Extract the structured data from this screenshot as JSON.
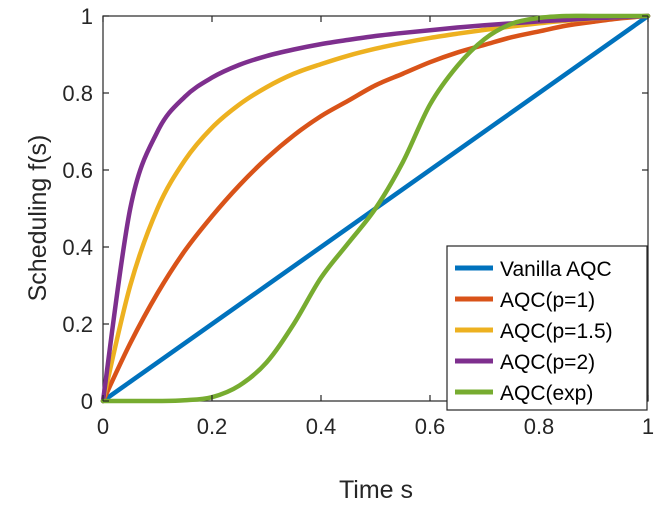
{
  "chart_data": {
    "type": "line",
    "title": "",
    "xlabel": "Time s",
    "ylabel": "Scheduling f(s)",
    "xlim": [
      0,
      1
    ],
    "ylim": [
      0,
      1
    ],
    "xticks": [
      "0",
      "0.2",
      "0.4",
      "0.6",
      "0.8",
      "1"
    ],
    "yticks": [
      "0",
      "0.2",
      "0.4",
      "0.6",
      "0.8",
      "1"
    ],
    "grid": false,
    "legend_position": "bottom-right",
    "x": [
      0,
      0.05,
      0.1,
      0.15,
      0.2,
      0.25,
      0.3,
      0.35,
      0.4,
      0.45,
      0.5,
      0.55,
      0.6,
      0.65,
      0.7,
      0.75,
      0.8,
      0.85,
      0.9,
      0.95,
      1
    ],
    "series": [
      {
        "name": "Vanilla AQC",
        "color": "#0072BD",
        "values": [
          0,
          0.05,
          0.1,
          0.15,
          0.2,
          0.25,
          0.3,
          0.35,
          0.4,
          0.45,
          0.5,
          0.55,
          0.6,
          0.65,
          0.7,
          0.75,
          0.8,
          0.85,
          0.9,
          0.95,
          1
        ]
      },
      {
        "name": "AQC(p=1)",
        "color": "#D95319",
        "values": [
          0,
          0.15,
          0.28,
          0.39,
          0.48,
          0.56,
          0.63,
          0.69,
          0.74,
          0.78,
          0.82,
          0.85,
          0.88,
          0.905,
          0.925,
          0.945,
          0.96,
          0.975,
          0.985,
          0.994,
          1
        ]
      },
      {
        "name": "AQC(p=1.5)",
        "color": "#EDB120",
        "values": [
          0,
          0.3,
          0.5,
          0.625,
          0.71,
          0.77,
          0.815,
          0.85,
          0.875,
          0.897,
          0.915,
          0.93,
          0.943,
          0.954,
          0.964,
          0.973,
          0.981,
          0.988,
          0.993,
          0.997,
          1
        ]
      },
      {
        "name": "AQC(p=2)",
        "color": "#7E2F8E",
        "values": [
          0,
          0.5,
          0.7,
          0.79,
          0.84,
          0.873,
          0.896,
          0.913,
          0.927,
          0.938,
          0.948,
          0.956,
          0.963,
          0.97,
          0.976,
          0.981,
          0.986,
          0.99,
          0.994,
          0.997,
          1
        ]
      },
      {
        "name": "AQC(exp)",
        "color": "#77AC30",
        "values": [
          0,
          0,
          0,
          0.002,
          0.01,
          0.04,
          0.1,
          0.2,
          0.32,
          0.41,
          0.5,
          0.62,
          0.77,
          0.87,
          0.94,
          0.98,
          0.995,
          1,
          1,
          1,
          1
        ]
      }
    ]
  }
}
